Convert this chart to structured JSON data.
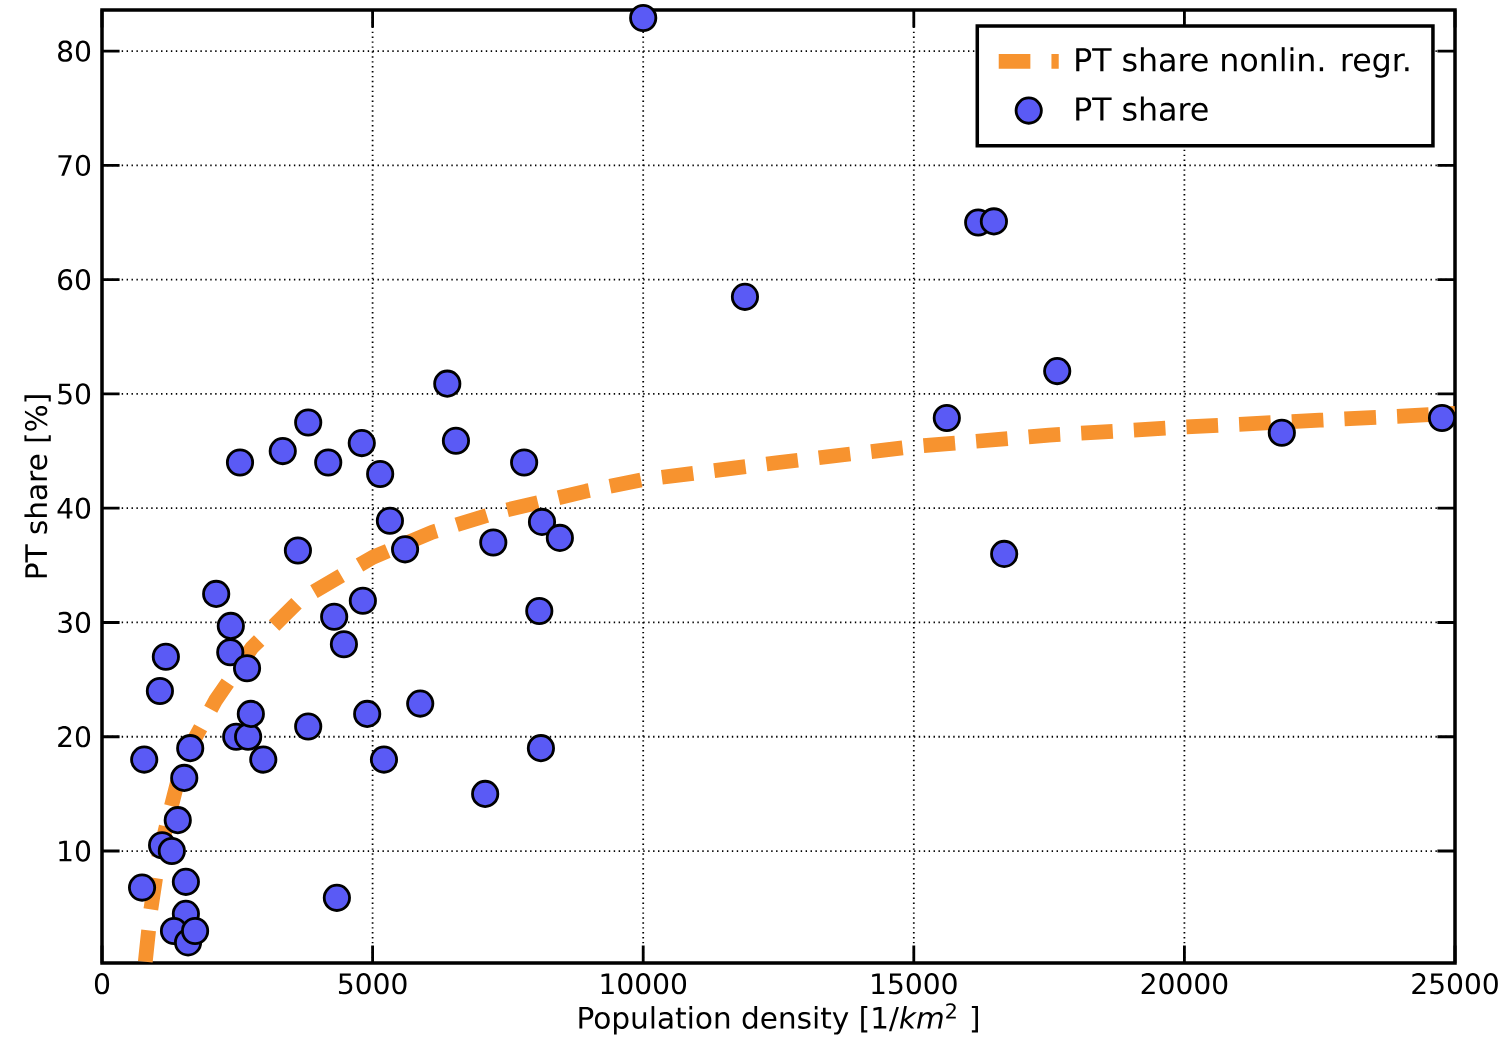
{
  "chart_data": {
    "type": "scatter",
    "xlabel": "Population density [1/*km*$^{2}$ ]",
    "ylabel": "PT share [%]",
    "xlim": [
      0,
      25000
    ],
    "ylim": [
      0.2,
      83.6
    ],
    "xticks": [
      0,
      5000,
      10000,
      15000,
      20000,
      25000
    ],
    "yticks": [
      10,
      20,
      30,
      40,
      50,
      60,
      70,
      80
    ],
    "grid": true,
    "legend": "top right",
    "series": [
      {
        "name": "PT share nonlin. regr.",
        "type": "line",
        "line_style": "dashed",
        "marker": "none",
        "color": "#f7932f",
        "x": [
          800,
          900,
          1050,
          1200,
          1500,
          2100,
          2770,
          3660,
          5000,
          6100,
          7350,
          8950,
          10000,
          12500,
          15000,
          17500,
          20000,
          22500,
          25000
        ],
        "values": [
          0.3,
          4.8,
          9.5,
          12.4,
          18,
          23.2,
          27.8,
          32,
          35.7,
          37.9,
          39.7,
          41.5,
          42.5,
          44,
          45.4,
          46.4,
          47.1,
          47.7,
          48.3
        ]
      },
      {
        "name": "PT share",
        "type": "scatter",
        "marker": "circle",
        "color": "#5a5af5",
        "x": [
          740,
          780,
          1070,
          1180,
          1110,
          1290,
          1400,
          1520,
          1630,
          1550,
          1550,
          1330,
          1590,
          1720,
          2110,
          2380,
          2370,
          2480,
          2700,
          2680,
          2750,
          2980,
          2550,
          3340,
          3620,
          3810,
          3810,
          4180,
          4290,
          4470,
          4340,
          4800,
          4820,
          4900,
          5140,
          5320,
          5210,
          5600,
          5880,
          6380,
          6540,
          7080,
          7230,
          7800,
          8130,
          8080,
          8110,
          8460,
          10000,
          11880,
          15610,
          16190,
          16480,
          16670,
          17650,
          21800,
          24760
        ],
        "values": [
          6.8,
          18,
          24,
          27,
          10.5,
          10,
          12.7,
          16.4,
          19,
          7.3,
          4.5,
          3,
          2,
          3,
          32.5,
          29.7,
          27.4,
          20,
          20,
          26,
          22,
          18,
          44,
          45,
          36.3,
          47.5,
          20.9,
          44,
          30.5,
          28.1,
          5.9,
          45.7,
          31.9,
          22,
          43,
          38.9,
          18,
          36.4,
          22.9,
          50.9,
          45.9,
          15,
          37,
          44,
          38.8,
          31,
          19,
          37.4,
          82.9,
          58.5,
          47.9,
          65,
          65.1,
          36,
          52,
          46.6,
          47.9
        ]
      }
    ]
  }
}
